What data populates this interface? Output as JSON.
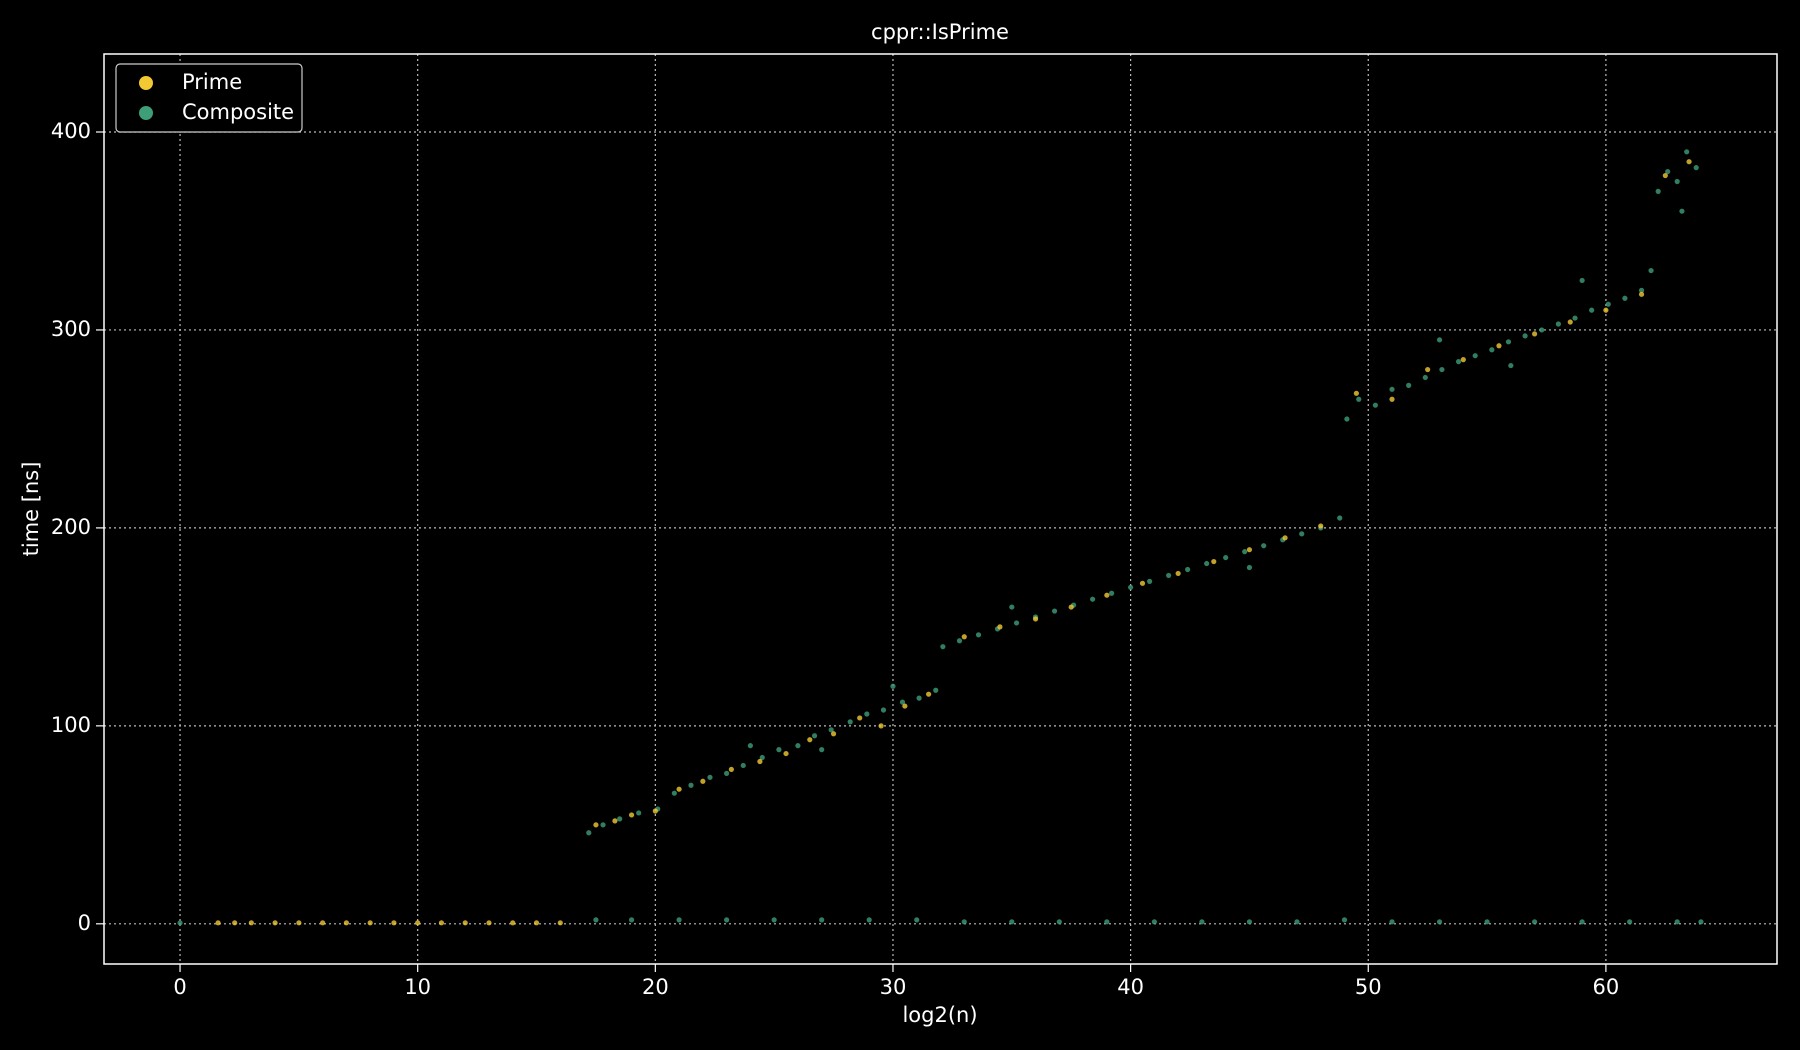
{
  "chart_data": {
    "type": "scatter",
    "title": "cppr::IsPrime",
    "x_label": "log2(n)",
    "y_label": "time [ns]",
    "xlim": [
      -3.2,
      67.2
    ],
    "ylim": [
      -20.3,
      439.4
    ],
    "xticks": [
      0,
      10,
      20,
      30,
      40,
      50,
      60
    ],
    "yticks": [
      0,
      100,
      200,
      300,
      400
    ],
    "grid": true,
    "legend": "upper left",
    "series": [
      {
        "name": "Composite",
        "color": "#3d9e78",
        "x": [
          17.2,
          17.8,
          18.5,
          19.3,
          20.1,
          20.8,
          21.5,
          22.3,
          23.0,
          23.7,
          24.5,
          25.2,
          26.0,
          26.7,
          27.4,
          28.2,
          28.9,
          29.6,
          30.4,
          31.1,
          31.8,
          32.1,
          32.8,
          33.6,
          34.4,
          35.2,
          36.0,
          36.8,
          37.6,
          38.4,
          39.2,
          40.0,
          40.8,
          41.6,
          42.4,
          43.2,
          44.0,
          44.8,
          45.6,
          46.4,
          47.2,
          48.0,
          48.8,
          49.1,
          49.6,
          50.3,
          51.0,
          51.7,
          52.4,
          53.1,
          53.8,
          54.5,
          55.2,
          55.9,
          56.6,
          57.3,
          58.0,
          58.7,
          59.4,
          60.1,
          60.8,
          61.5,
          61.9,
          62.2,
          62.6,
          63.0,
          63.4,
          63.8,
          24.0,
          27.0,
          30.0,
          35.0,
          45.0,
          53.0,
          56.0,
          59.0,
          63.2,
          0,
          17.5,
          19,
          21,
          23,
          25,
          27,
          29,
          31,
          33,
          35,
          37,
          39,
          41,
          43,
          45,
          47,
          49,
          51,
          53,
          55,
          57,
          59,
          61,
          63,
          64
        ],
        "values": [
          46,
          50,
          53,
          56,
          58,
          66,
          70,
          74,
          76,
          80,
          84,
          88,
          90,
          95,
          98,
          102,
          106,
          108,
          112,
          114,
          118,
          140,
          143,
          146,
          149,
          152,
          155,
          158,
          161,
          164,
          167,
          170,
          173,
          176,
          179,
          182,
          185,
          188,
          191,
          194,
          197,
          200,
          205,
          255,
          265,
          262,
          270,
          272,
          276,
          280,
          284,
          287,
          290,
          294,
          297,
          300,
          303,
          306,
          310,
          313,
          316,
          320,
          330,
          370,
          380,
          375,
          390,
          382,
          90,
          88,
          120,
          160,
          180,
          295,
          282,
          325,
          360,
          0.5,
          2,
          2,
          2,
          2,
          2,
          2,
          2,
          2,
          1,
          1,
          1,
          1,
          1,
          1,
          1,
          1,
          2,
          1,
          1,
          1,
          1,
          1,
          1,
          1,
          1
        ]
      },
      {
        "name": "Prime",
        "color": "#f2c933",
        "x": [
          1.6,
          2.3,
          3,
          4,
          5,
          6,
          7,
          8,
          9,
          10,
          11,
          12,
          13,
          14,
          15,
          16,
          17.5,
          18.3,
          19.0,
          20.0,
          21.0,
          22.0,
          23.2,
          24.4,
          25.5,
          26.5,
          27.5,
          28.6,
          29.5,
          30.5,
          31.5,
          33.0,
          34.5,
          36.0,
          37.5,
          39.0,
          40.5,
          42.0,
          43.5,
          45.0,
          46.5,
          48.0,
          49.5,
          51.0,
          52.5,
          54.0,
          55.5,
          57.0,
          58.5,
          60.0,
          61.5,
          62.5,
          63.5
        ],
        "values": [
          0.5,
          0.5,
          0.5,
          0.5,
          0.5,
          0.5,
          0.5,
          0.5,
          0.5,
          0.5,
          0.5,
          0.5,
          0.5,
          0.5,
          0.5,
          0.5,
          50,
          52,
          55,
          57,
          68,
          72,
          78,
          82,
          86,
          93,
          96,
          104,
          100,
          110,
          116,
          145,
          150,
          154,
          160,
          166,
          172,
          177,
          183,
          189,
          195,
          201,
          268,
          265,
          280,
          285,
          292,
          298,
          304,
          310,
          318,
          378,
          385
        ]
      }
    ]
  }
}
